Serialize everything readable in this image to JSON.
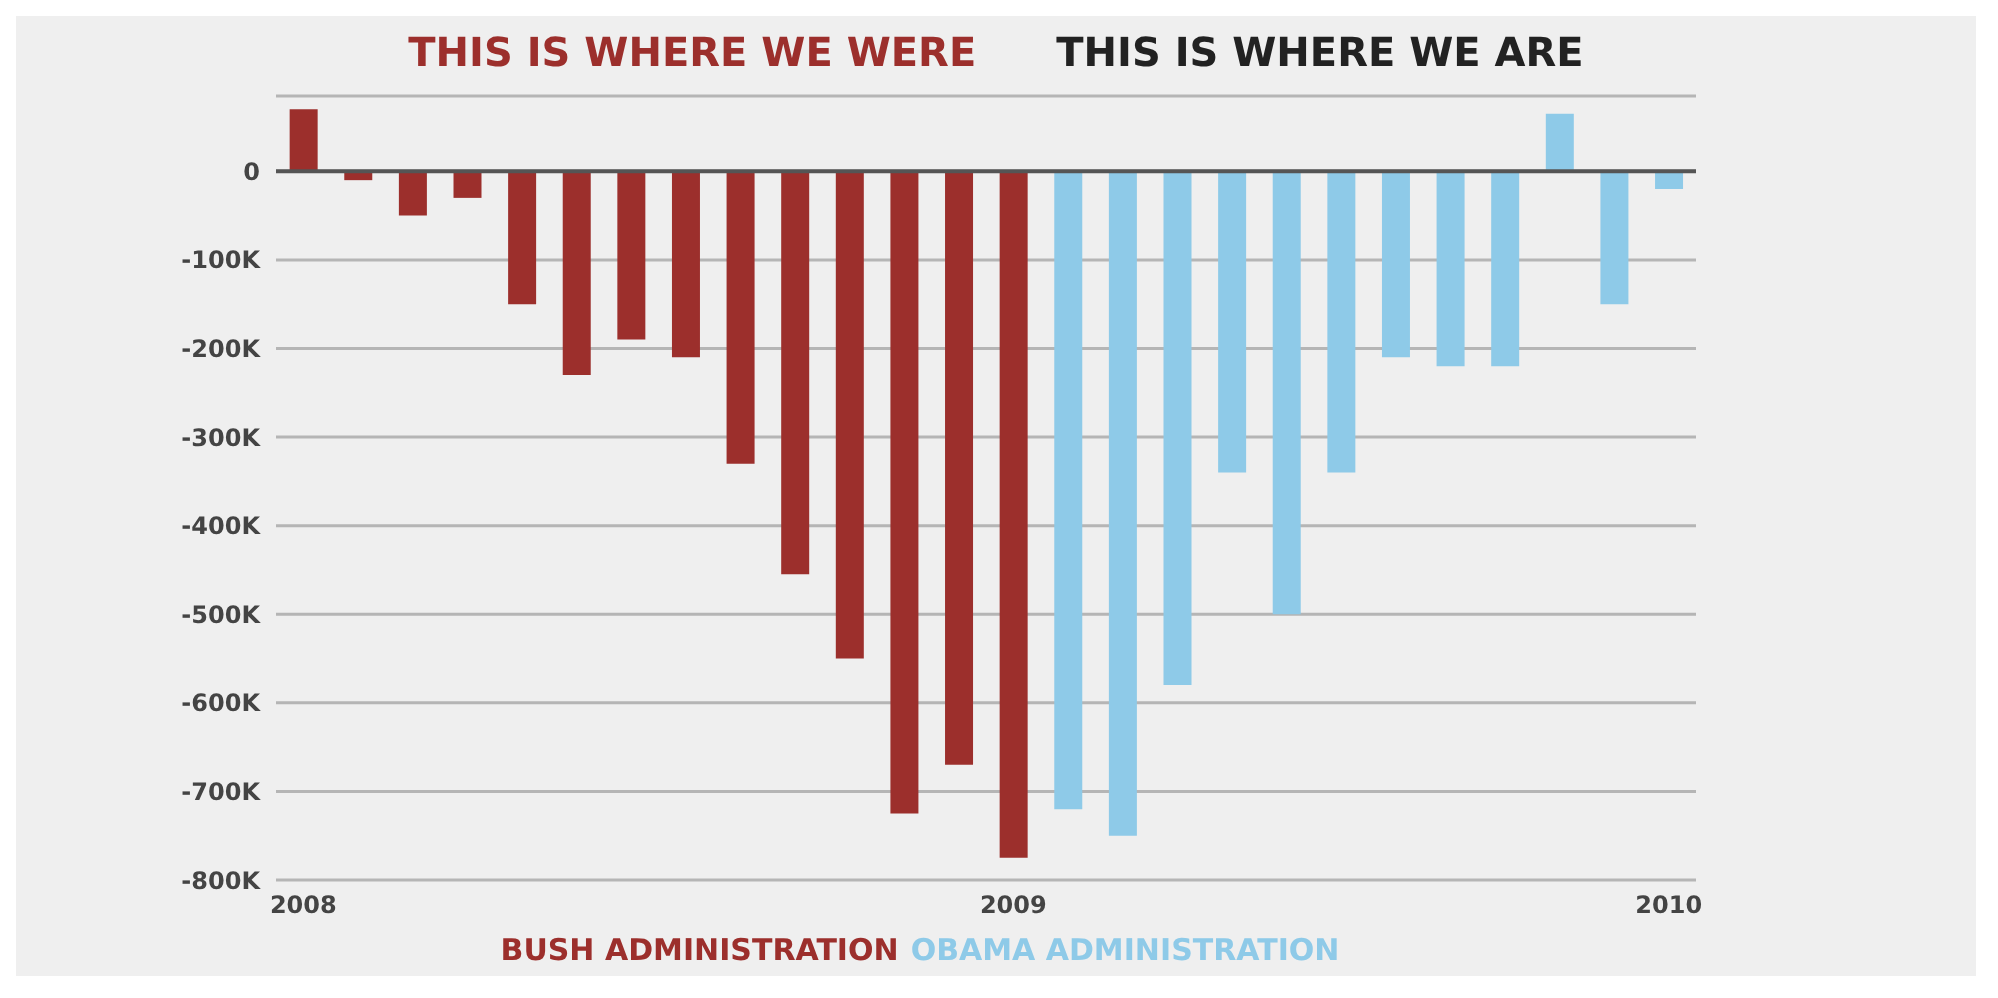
{
  "chart_data": {
    "type": "bar",
    "title": "THIS IS WHERE WE WERE",
    "subtitle": "THIS IS WHERE WE ARE",
    "categories": [
      "2008",
      null,
      null,
      null,
      null,
      null,
      null,
      null,
      null,
      null,
      null,
      null,
      null,
      "2009",
      null,
      null,
      null,
      null,
      null,
      null,
      null,
      null,
      null,
      null,
      null,
      "2010"
    ],
    "series": [
      {
        "name": "BUSH ADMINISTRATION",
        "color": "#9c2f2c",
        "values": [
          70,
          -10,
          -50,
          -30,
          -150,
          -230,
          -190,
          -210,
          -330,
          -455,
          -550,
          -725,
          -670,
          -775,
          null,
          null,
          null,
          null,
          null,
          null,
          null,
          null,
          null,
          null,
          null,
          null
        ]
      },
      {
        "name": "OBAMA ADMINISTRATION",
        "color": "#8ecae8",
        "values": [
          null,
          null,
          null,
          null,
          null,
          null,
          null,
          null,
          null,
          null,
          null,
          null,
          null,
          null,
          -720,
          -750,
          -580,
          -340,
          -500,
          -340,
          -210,
          -220,
          -220,
          65,
          -150,
          -20
        ]
      }
    ],
    "stacked": true,
    "ylim": [
      -800,
      85
    ],
    "yticks": [
      {
        "value": -800,
        "label": "-800K"
      },
      {
        "value": -700,
        "label": "-700K"
      },
      {
        "value": -600,
        "label": "-600K"
      },
      {
        "value": -500,
        "label": "-500K"
      },
      {
        "value": -400,
        "label": "-400K"
      },
      {
        "value": -300,
        "label": "-300K"
      },
      {
        "value": -200,
        "label": "-200K"
      },
      {
        "value": -100,
        "label": "-100K"
      },
      0
    ],
    "ref_lines": [
      {
        "axis": "y",
        "value": 0,
        "color": "#555555"
      }
    ],
    "grid": "y",
    "legend": "bottom"
  }
}
